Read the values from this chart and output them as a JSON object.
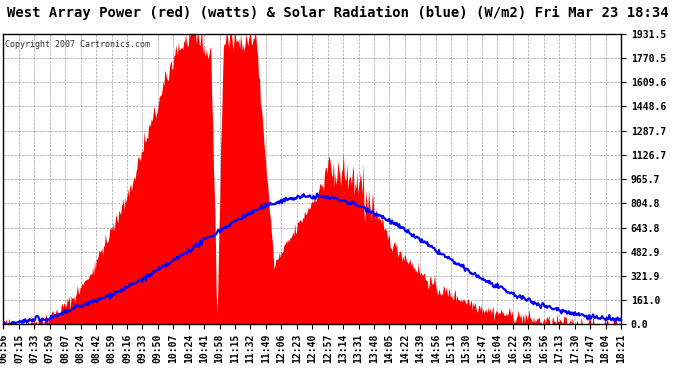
{
  "title": "West Array Power (red) (watts) & Solar Radiation (blue) (W/m2) Fri Mar 23 18:34",
  "copyright": "Copyright 2007 Cartronics.com",
  "background_color": "#ffffff",
  "plot_bg_color": "#ffffff",
  "grid_color": "#888888",
  "ymin": 0.0,
  "ymax": 1931.5,
  "yticks": [
    0.0,
    161.0,
    321.9,
    482.9,
    643.8,
    804.8,
    965.7,
    1126.7,
    1287.7,
    1448.6,
    1609.6,
    1770.5,
    1931.5
  ],
  "title_fontsize": 10,
  "tick_labelsize": 7,
  "x_labels": [
    "06:56",
    "07:15",
    "07:33",
    "07:50",
    "08:07",
    "08:24",
    "08:42",
    "08:59",
    "09:16",
    "09:33",
    "09:50",
    "10:07",
    "10:24",
    "10:41",
    "10:58",
    "11:15",
    "11:32",
    "11:49",
    "12:06",
    "12:23",
    "12:40",
    "12:57",
    "13:14",
    "13:31",
    "13:48",
    "14:05",
    "14:22",
    "14:39",
    "14:56",
    "15:13",
    "15:30",
    "15:47",
    "16:04",
    "16:22",
    "16:39",
    "16:56",
    "17:13",
    "17:30",
    "17:47",
    "18:04",
    "18:21"
  ],
  "red_fill_color": "#ff0000",
  "blue_line_color": "#0000ff"
}
